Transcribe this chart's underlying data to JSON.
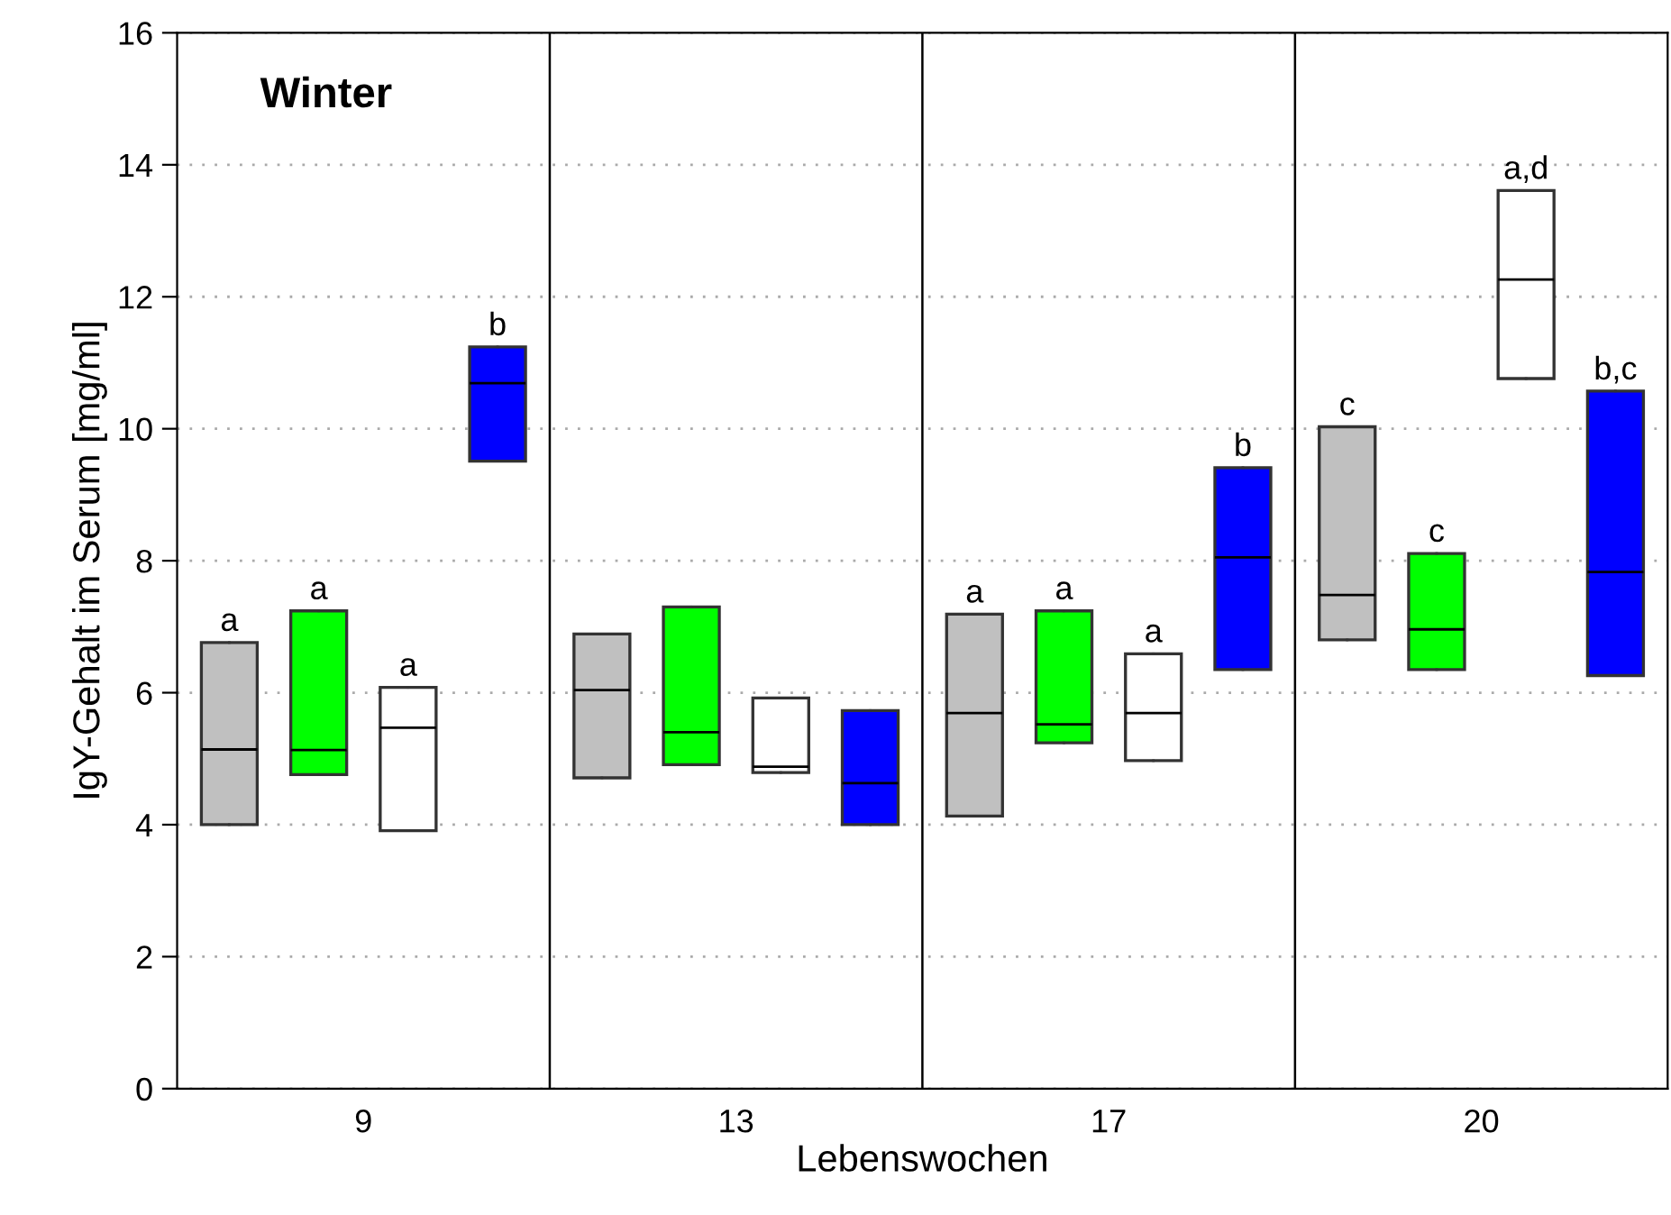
{
  "chart_data": {
    "type": "box",
    "title": "Winter",
    "xlabel": "Lebenswochen",
    "ylabel": "IgY-Gehalt im Serum [mg/ml]",
    "categories": [
      "9",
      "13",
      "17",
      "20"
    ],
    "ylim": [
      0,
      16
    ],
    "yticks": [
      0,
      2,
      4,
      6,
      8,
      10,
      12,
      14,
      16
    ],
    "grid": "y",
    "legend": false,
    "series": [
      {
        "color": "#c0c0c0",
        "value_labels": [
          "a",
          null,
          "a",
          "c"
        ],
        "boxes": [
          {
            "low": 4.0,
            "q1": 4.0,
            "median": 5.14,
            "q3": 6.76,
            "high": 6.76
          },
          {
            "low": 4.71,
            "q1": 4.71,
            "median": 6.04,
            "q3": 6.89,
            "high": 6.89
          },
          {
            "low": 4.13,
            "q1": 4.13,
            "median": 5.69,
            "q3": 7.19,
            "high": 7.19
          },
          {
            "low": 6.8,
            "q1": 6.8,
            "median": 7.48,
            "q3": 10.03,
            "high": 10.03
          }
        ]
      },
      {
        "color": "#00ff00",
        "value_labels": [
          "a",
          null,
          "a",
          "c"
        ],
        "boxes": [
          {
            "low": 4.76,
            "q1": 4.76,
            "median": 5.13,
            "q3": 7.24,
            "high": 7.24
          },
          {
            "low": 4.91,
            "q1": 4.91,
            "median": 5.4,
            "q3": 7.3,
            "high": 7.3
          },
          {
            "low": 5.24,
            "q1": 5.24,
            "median": 5.52,
            "q3": 7.24,
            "high": 7.24
          },
          {
            "low": 6.35,
            "q1": 6.35,
            "median": 6.96,
            "q3": 8.11,
            "high": 8.11
          }
        ]
      },
      {
        "color": "#ffffff",
        "value_labels": [
          "a",
          null,
          "a",
          "a,d"
        ],
        "boxes": [
          {
            "low": 3.91,
            "q1": 3.91,
            "median": 5.47,
            "q3": 6.08,
            "high": 6.08
          },
          {
            "low": 4.79,
            "q1": 4.79,
            "median": 4.88,
            "q3": 5.92,
            "high": 5.92
          },
          {
            "low": 4.97,
            "q1": 4.97,
            "median": 5.69,
            "q3": 6.59,
            "high": 6.59
          },
          {
            "low": 10.76,
            "q1": 10.76,
            "median": 12.26,
            "q3": 13.61,
            "high": 13.61
          }
        ]
      },
      {
        "color": "#0000ff",
        "value_labels": [
          "b",
          null,
          "b",
          "b,c"
        ],
        "boxes": [
          {
            "low": 9.51,
            "q1": 9.51,
            "median": 10.69,
            "q3": 11.24,
            "high": 11.24
          },
          {
            "low": 4.0,
            "q1": 4.0,
            "median": 4.63,
            "q3": 5.73,
            "high": 5.73
          },
          {
            "low": 6.35,
            "q1": 6.35,
            "median": 8.05,
            "q3": 9.41,
            "high": 9.41
          },
          {
            "low": 6.26,
            "q1": 6.26,
            "median": 7.83,
            "q3": 10.57,
            "high": 10.57
          }
        ]
      }
    ]
  }
}
